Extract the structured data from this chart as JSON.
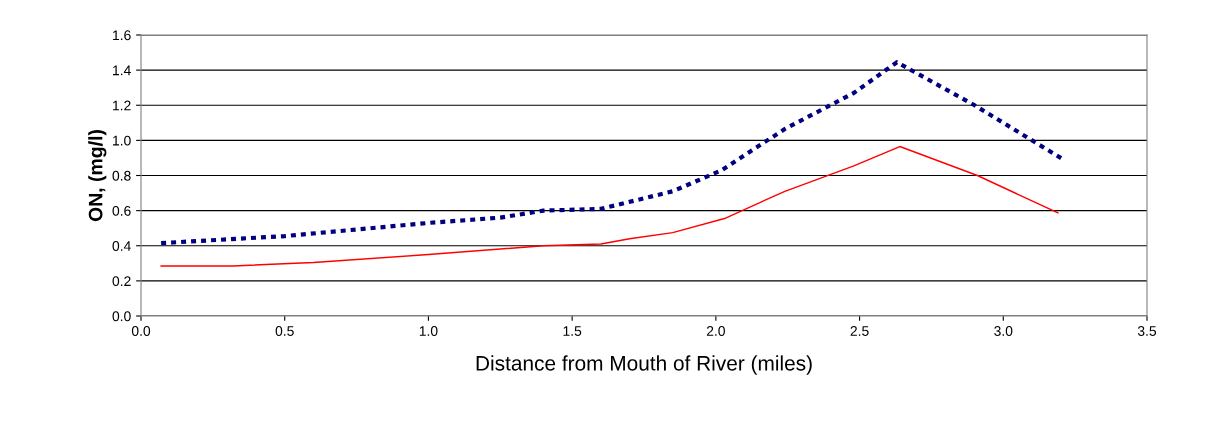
{
  "chart_data": {
    "type": "line",
    "xlabel": "Distance from Mouth of River (miles)",
    "ylabel": "ON, (mg/l)",
    "xlim": [
      0,
      3.5
    ],
    "ylim": [
      0,
      1.6
    ],
    "xticks": [
      {
        "value": 0,
        "label": "0.0"
      },
      {
        "value": 0.5,
        "label": "0.5"
      },
      {
        "value": 1,
        "label": "1.0"
      },
      {
        "value": 1.5,
        "label": "1.5"
      },
      {
        "value": 2,
        "label": "2.0"
      },
      {
        "value": 2.5,
        "label": "2.5"
      },
      {
        "value": 3,
        "label": "3.0"
      },
      {
        "value": 3.5,
        "label": "3.5"
      }
    ],
    "yticks": [
      {
        "value": 0,
        "label": "0.0"
      },
      {
        "value": 0.2,
        "label": "0.2"
      },
      {
        "value": 0.4,
        "label": "0.4"
      },
      {
        "value": 0.6,
        "label": "0.6"
      },
      {
        "value": 0.8,
        "label": "0.8"
      },
      {
        "value": 1.0,
        "label": "1.0"
      },
      {
        "value": 1.2,
        "label": "1.2"
      },
      {
        "value": 1.4,
        "label": "1.4"
      },
      {
        "value": 1.6,
        "label": "1.6"
      }
    ],
    "grid": "y",
    "legend": false,
    "marker": "none",
    "series": [
      {
        "color": "#000080",
        "line_style": "dotted",
        "x": [
          0.07,
          0.5,
          1.0,
          1.25,
          1.4,
          1.6,
          1.85,
          2.02,
          2.24,
          2.48,
          2.63,
          2.9,
          3.21
        ],
        "values": [
          0.415,
          0.455,
          0.53,
          0.56,
          0.6,
          0.61,
          0.71,
          0.83,
          1.065,
          1.27,
          1.445,
          1.2,
          0.89
        ]
      },
      {
        "color": "#ff0000",
        "line_style": "solid",
        "x": [
          0.07,
          0.32,
          0.6,
          1.0,
          1.4,
          1.6,
          1.7,
          1.85,
          2.03,
          2.24,
          2.48,
          2.64,
          2.91,
          3.19
        ],
        "values": [
          0.285,
          0.285,
          0.305,
          0.35,
          0.4,
          0.41,
          0.44,
          0.475,
          0.555,
          0.71,
          0.855,
          0.965,
          0.8,
          0.587
        ]
      }
    ]
  }
}
